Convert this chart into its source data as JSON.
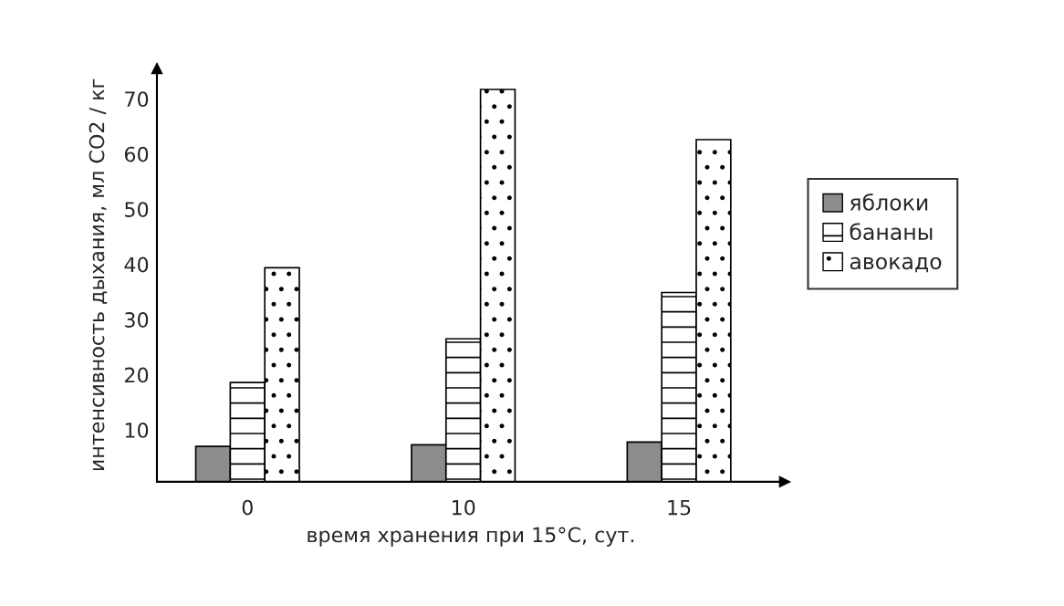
{
  "chart_data": {
    "type": "bar",
    "xlabel": "время хранения при 15°C, сут.",
    "ylabel": "интенсивность дыхания, мл CO2 / кг",
    "categories": [
      "0",
      "10",
      "15"
    ],
    "series": [
      {
        "name": "яблоки",
        "color": "#8c8c8c",
        "values": [
          7.0,
          7.3,
          7.8
        ]
      },
      {
        "name": "бананы",
        "color": "#ffffff",
        "values": [
          18.6,
          26.5,
          34.9
        ]
      },
      {
        "name": "авокадо",
        "color": "#ffffff",
        "values": [
          39.4,
          71.7,
          62.6
        ]
      }
    ],
    "ylim": [
      0.6,
      75.5
    ],
    "yticks": [
      10,
      20,
      30,
      40,
      50,
      60,
      70
    ],
    "grid": false,
    "legend": "right"
  }
}
